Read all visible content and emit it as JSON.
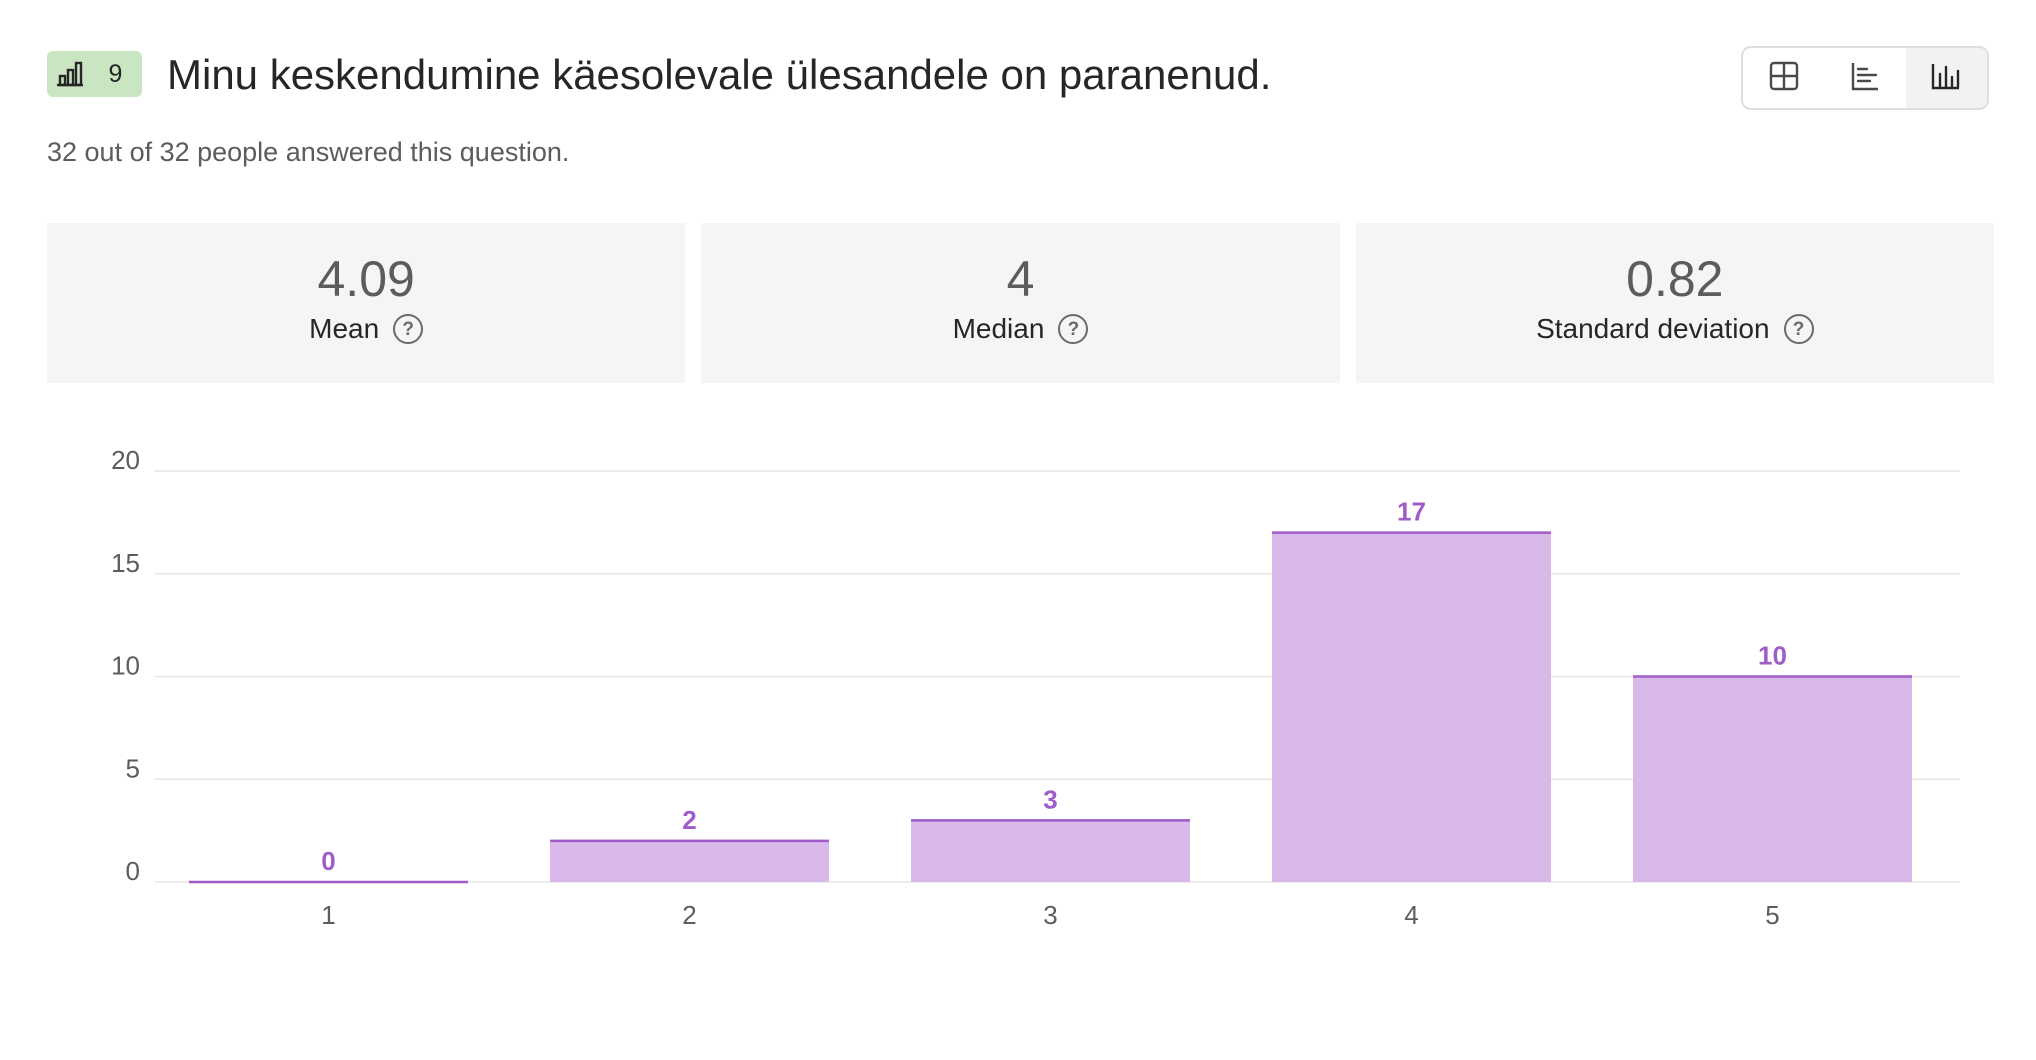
{
  "question": {
    "badge_number": "9",
    "badge_icon": "bar-chart-icon",
    "title": "Minu keskendumine käesolevale ülesandele on paranenud.",
    "answered_text": "32 out of 32 people answered this question."
  },
  "view_switcher": {
    "options": [
      {
        "icon": "table-icon",
        "active": false
      },
      {
        "icon": "horizontal-bar-chart-icon",
        "active": false
      },
      {
        "icon": "vertical-bar-chart-icon",
        "active": true
      }
    ]
  },
  "stats": {
    "mean": {
      "value": "4.09",
      "label": "Mean"
    },
    "median": {
      "value": "4",
      "label": "Median"
    },
    "std": {
      "value": "0.82",
      "label": "Standard deviation"
    }
  },
  "colors": {
    "bar_fill": "#d8b9ea",
    "bar_edge": "#a05cc8",
    "data_label": "#a05cc8",
    "badge_bg": "#c9e5c1",
    "stat_bg": "#f5f5f5"
  },
  "chart_data": {
    "type": "bar",
    "categories": [
      "1",
      "2",
      "3",
      "4",
      "5"
    ],
    "values": [
      0,
      2,
      3,
      17,
      10
    ],
    "title": "",
    "xlabel": "",
    "ylabel": "",
    "ylim": [
      0,
      20
    ],
    "yticks": [
      0,
      5,
      10,
      15,
      20
    ],
    "grid": true,
    "data_labels": true
  }
}
